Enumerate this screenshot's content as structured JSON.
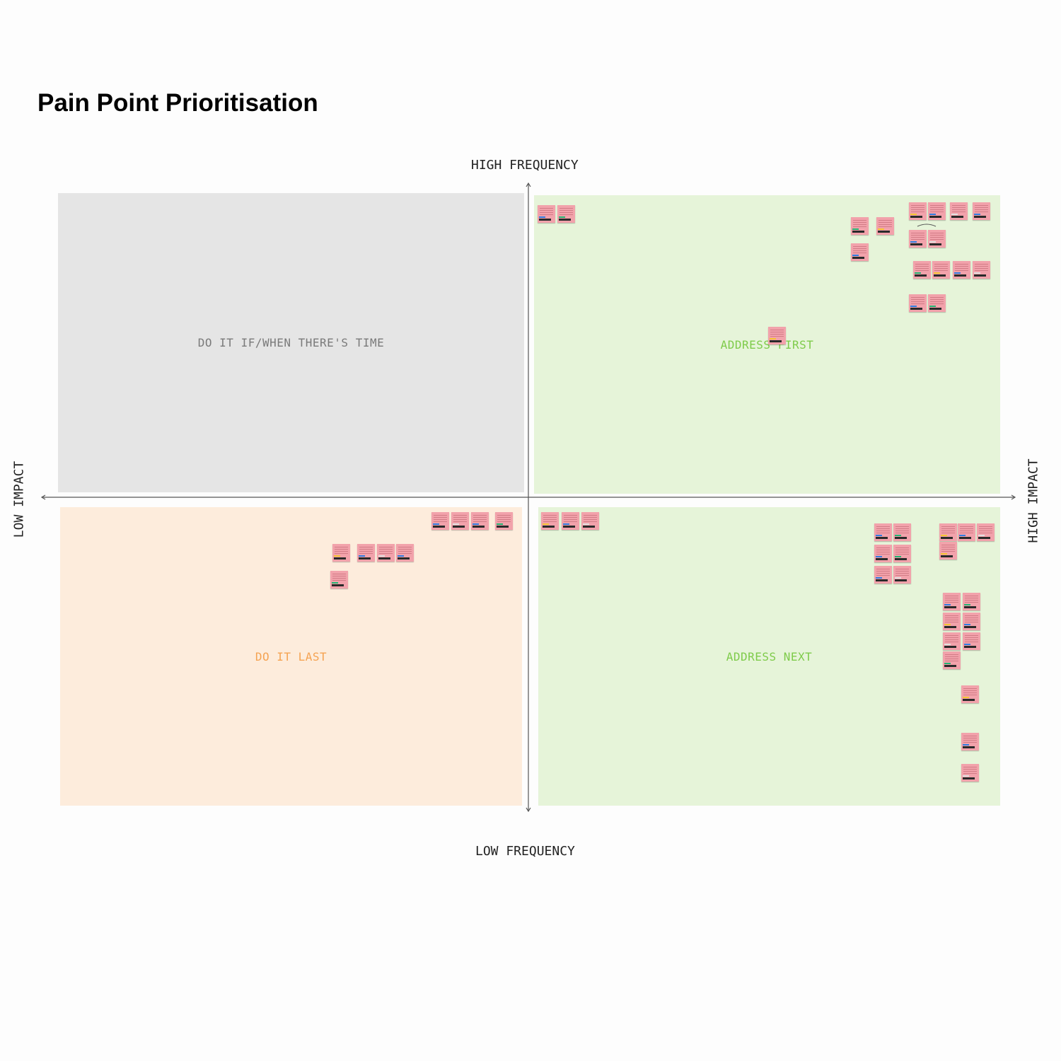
{
  "title": "Pain Point Prioritisation",
  "axes": {
    "top": "HIGH FREQUENCY",
    "bottom": "LOW FREQUENCY",
    "left": "LOW IMPACT",
    "right": "HIGH IMPACT"
  },
  "quadrants": {
    "top_left": "DO IT IF/WHEN THERE'S TIME",
    "top_right": "ADDRESS FIRST",
    "bottom_left": "DO IT LAST",
    "bottom_right": "ADDRESS NEXT"
  },
  "colors": {
    "top_left_bg": "#e5e5e5",
    "green_bg": "#e6f4d9",
    "orange_bg": "#fdecdc",
    "sticky_note": "#f2a2ab"
  },
  "sticky_notes": {
    "top_right": [
      {
        "text": "Exception flow is a manual process"
      },
      {
        "text": "Too few data"
      },
      {
        "text": "Digital literacy"
      }
    ],
    "bottom_right": [
      {
        "text": "Manual process"
      },
      {
        "text": "Digital literacy not ideal"
      }
    ],
    "bottom_left": []
  }
}
